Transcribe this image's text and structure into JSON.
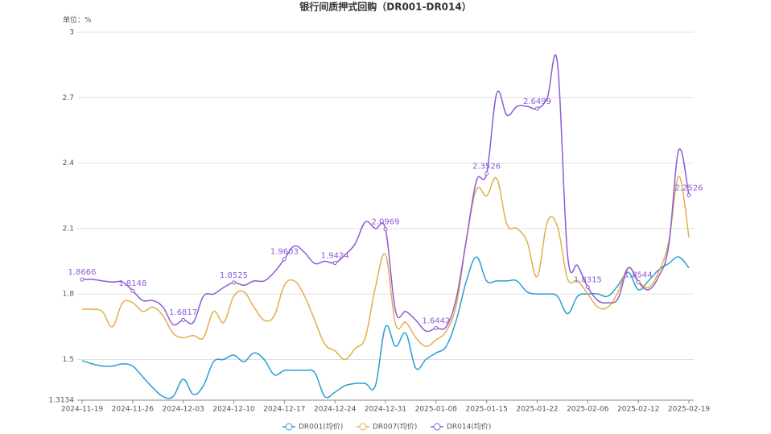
{
  "chart_data": {
    "type": "line",
    "title": "银行间质押式回购（DR001-DR014）",
    "unit_label": "单位：%",
    "categories": [
      "2024-11-19",
      null,
      null,
      null,
      null,
      "2024-11-26",
      null,
      null,
      null,
      null,
      "2024-12-03",
      null,
      null,
      null,
      null,
      "2024-12-10",
      null,
      null,
      null,
      null,
      "2024-12-17",
      null,
      null,
      null,
      null,
      "2024-12-24",
      null,
      null,
      null,
      null,
      "2024-12-31",
      null,
      null,
      null,
      null,
      "2025-01-08",
      null,
      null,
      null,
      null,
      "2025-01-15",
      null,
      null,
      null,
      null,
      "2025-01-22",
      null,
      null,
      null,
      null,
      "2025-02-06",
      null,
      null,
      null,
      null,
      "2025-02-12",
      null,
      null,
      null,
      null,
      "2025-02-19"
    ],
    "series": [
      {
        "name": "DR001(均价)",
        "color": "#2a9fd0",
        "values": [
          1.495,
          1.48,
          1.47,
          1.47,
          1.48,
          1.47,
          1.42,
          1.37,
          1.33,
          1.33,
          1.41,
          1.34,
          1.38,
          1.49,
          1.5,
          1.52,
          1.49,
          1.53,
          1.5,
          1.43,
          1.45,
          1.45,
          1.45,
          1.44,
          1.33,
          1.35,
          1.38,
          1.39,
          1.39,
          1.38,
          1.65,
          1.56,
          1.62,
          1.46,
          1.5,
          1.53,
          1.56,
          1.68,
          1.86,
          1.97,
          1.86,
          1.86,
          1.86,
          1.86,
          1.81,
          1.8,
          1.8,
          1.79,
          1.71,
          1.79,
          1.8,
          1.8,
          1.79,
          1.84,
          1.9,
          1.82,
          1.86,
          1.91,
          1.94,
          1.97,
          1.92
        ]
      },
      {
        "name": "DR007(均价)",
        "color": "#e3ae4a",
        "values": [
          1.73,
          1.73,
          1.72,
          1.65,
          1.76,
          1.76,
          1.72,
          1.74,
          1.7,
          1.62,
          1.6,
          1.61,
          1.6,
          1.72,
          1.67,
          1.79,
          1.81,
          1.74,
          1.68,
          1.7,
          1.84,
          1.86,
          1.79,
          1.68,
          1.57,
          1.54,
          1.5,
          1.55,
          1.6,
          1.83,
          1.98,
          1.66,
          1.67,
          1.6,
          1.56,
          1.59,
          1.63,
          1.75,
          2.05,
          2.28,
          2.25,
          2.33,
          2.12,
          2.1,
          2.04,
          1.88,
          2.13,
          2.11,
          1.87,
          1.86,
          1.8,
          1.74,
          1.74,
          1.81,
          1.92,
          1.86,
          1.83,
          1.9,
          2.04,
          2.34,
          2.06
        ]
      },
      {
        "name": "DR014(均价)",
        "color": "#8d5bd6",
        "values": [
          1.8666,
          1.867,
          1.86,
          1.855,
          1.855,
          1.8148,
          1.77,
          1.77,
          1.74,
          1.66,
          1.6817,
          1.67,
          1.79,
          1.8,
          1.83,
          1.8525,
          1.84,
          1.86,
          1.86,
          1.9,
          1.9603,
          2.02,
          1.99,
          1.94,
          1.95,
          1.9424,
          1.98,
          2.03,
          2.13,
          2.1,
          2.0969,
          1.72,
          1.72,
          1.68,
          1.63,
          1.6442,
          1.65,
          1.78,
          2.05,
          2.32,
          2.3526,
          2.72,
          2.62,
          2.66,
          2.66,
          2.6499,
          2.7,
          2.86,
          1.98,
          1.93,
          1.8315,
          1.77,
          1.76,
          1.78,
          1.92,
          1.8544,
          1.82,
          1.88,
          2.02,
          2.46,
          2.2526
        ],
        "labeled_points": [
          0,
          5,
          10,
          15,
          20,
          25,
          30,
          35,
          40,
          45,
          50,
          55,
          60
        ]
      }
    ],
    "ylim": [
      1.3134,
      3
    ],
    "yticks": [
      1.3134,
      1.5,
      1.8,
      2.1,
      2.4,
      2.7,
      3
    ],
    "grid": true
  }
}
